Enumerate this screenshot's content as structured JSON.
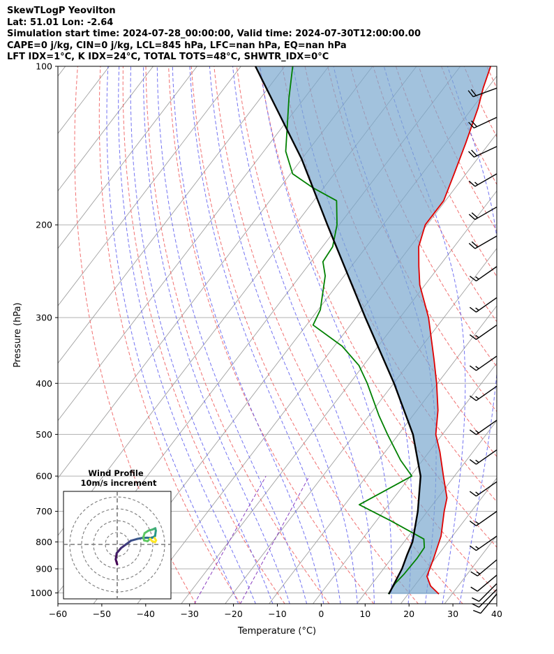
{
  "header": {
    "title": "SkewTLogP Yeovilton",
    "location": "Lat: 51.01   Lon: -2.64",
    "times": "Simulation start time: 2024-07-28_00:00:00, Valid time: 2024-07-30T12:00:00.00",
    "indices1": "CAPE=0 j/kg, CIN=0 j/kg, LCL=845 hPa, LFC=nan hPa, EQ=nan hPa",
    "indices2": "LFT IDX=1°C, K IDX=24°C, TOTAL TOTS=48°C, SHWTR_IDX=0°C"
  },
  "chart_data": {
    "type": "line",
    "subtype": "skew-t log-p",
    "xlabel": "Temperature (°C)",
    "ylabel": "Pressure (hPa)",
    "xlim": [
      -60,
      40
    ],
    "ylim": [
      1050,
      100
    ],
    "y_scale": "log",
    "x_ticks": [
      -60,
      -50,
      -40,
      -30,
      -20,
      -10,
      0,
      10,
      20,
      30,
      40
    ],
    "x_tick_labels": [
      "−60",
      "−50",
      "−40",
      "−30",
      "−20",
      "−10",
      "0",
      "10",
      "20",
      "30",
      "40"
    ],
    "y_ticks": [
      1000,
      900,
      800,
      700,
      600,
      500,
      400,
      300,
      200,
      100
    ],
    "grid": true,
    "colors": {
      "temperature": "#e00000",
      "dewpoint": "#008000",
      "parcel": "#000000",
      "cape_fill": "#7aa8cf",
      "dry_adiabat": "#f06060",
      "moist_adiabat": "#5a5af0",
      "mixing_ratio": "#8a3fc0",
      "isotherm": "#a0a0a0"
    },
    "series": [
      {
        "name": "",
        "role": "temperature",
        "points": [
          [
            1005,
            27
          ],
          [
            970,
            23.7
          ],
          [
            930,
            21.2
          ],
          [
            860,
            19.6
          ],
          [
            780,
            17.4
          ],
          [
            700,
            13.8
          ],
          [
            660,
            12.1
          ],
          [
            600,
            7.5
          ],
          [
            540,
            2.5
          ],
          [
            500,
            -1.5
          ],
          [
            450,
            -5.2
          ],
          [
            400,
            -10.2
          ],
          [
            360,
            -15.0
          ],
          [
            300,
            -23.5
          ],
          [
            260,
            -31.2
          ],
          [
            240,
            -34.6
          ],
          [
            220,
            -38.1
          ],
          [
            200,
            -40.4
          ],
          [
            180,
            -40.4
          ],
          [
            160,
            -42.7
          ],
          [
            140,
            -45.4
          ],
          [
            120,
            -48.7
          ],
          [
            110,
            -51.0
          ],
          [
            100,
            -53.1
          ]
        ]
      },
      {
        "name": "",
        "role": "dewpoint",
        "points": [
          [
            1005,
            15.5
          ],
          [
            960,
            15.2
          ],
          [
            920,
            15.6
          ],
          [
            860,
            15.8
          ],
          [
            820,
            15.6
          ],
          [
            790,
            14.0
          ],
          [
            730,
            3.4
          ],
          [
            680,
            -6.7
          ],
          [
            600,
            0.3
          ],
          [
            560,
            -5.0
          ],
          [
            500,
            -12.5
          ],
          [
            460,
            -17.8
          ],
          [
            400,
            -26.0
          ],
          [
            370,
            -31.0
          ],
          [
            340,
            -38.2
          ],
          [
            310,
            -48.5
          ],
          [
            290,
            -49.5
          ],
          [
            250,
            -54.3
          ],
          [
            235,
            -57.3
          ],
          [
            220,
            -57.7
          ],
          [
            200,
            -60.5
          ],
          [
            180,
            -64.8
          ],
          [
            170,
            -72.5
          ],
          [
            160,
            -79.5
          ],
          [
            145,
            -85.0
          ],
          [
            130,
            -89.0
          ],
          [
            115,
            -93.5
          ],
          [
            100,
            -98.2
          ]
        ]
      },
      {
        "name": "",
        "role": "parcel",
        "points": [
          [
            1005,
            15.6
          ],
          [
            900,
            14.2
          ],
          [
            845,
            12.9
          ],
          [
            800,
            11.9
          ],
          [
            700,
            7.8
          ],
          [
            600,
            2.3
          ],
          [
            500,
            -6.7
          ],
          [
            400,
            -19.9
          ],
          [
            300,
            -37.9
          ],
          [
            200,
            -62.7
          ],
          [
            150,
            -80.0
          ],
          [
            100,
            -106.7
          ]
        ]
      }
    ],
    "wind_barbs": [
      {
        "p": 110,
        "speed_kt": 20,
        "dir_deg": 250
      },
      {
        "p": 125,
        "speed_kt": 20,
        "dir_deg": 245
      },
      {
        "p": 142,
        "speed_kt": 20,
        "dir_deg": 245
      },
      {
        "p": 160,
        "speed_kt": 15,
        "dir_deg": 240
      },
      {
        "p": 185,
        "speed_kt": 20,
        "dir_deg": 240
      },
      {
        "p": 210,
        "speed_kt": 20,
        "dir_deg": 240
      },
      {
        "p": 240,
        "speed_kt": 15,
        "dir_deg": 235
      },
      {
        "p": 275,
        "speed_kt": 15,
        "dir_deg": 235
      },
      {
        "p": 310,
        "speed_kt": 15,
        "dir_deg": 235
      },
      {
        "p": 355,
        "speed_kt": 15,
        "dir_deg": 235
      },
      {
        "p": 405,
        "speed_kt": 15,
        "dir_deg": 235
      },
      {
        "p": 470,
        "speed_kt": 15,
        "dir_deg": 235
      },
      {
        "p": 535,
        "speed_kt": 15,
        "dir_deg": 235
      },
      {
        "p": 615,
        "speed_kt": 15,
        "dir_deg": 235
      },
      {
        "p": 700,
        "speed_kt": 15,
        "dir_deg": 235
      },
      {
        "p": 780,
        "speed_kt": 15,
        "dir_deg": 235
      },
      {
        "p": 865,
        "speed_kt": 15,
        "dir_deg": 230
      },
      {
        "p": 925,
        "speed_kt": 10,
        "dir_deg": 230
      },
      {
        "p": 960,
        "speed_kt": 10,
        "dir_deg": 225
      },
      {
        "p": 985,
        "speed_kt": 10,
        "dir_deg": 225
      },
      {
        "p": 1005,
        "speed_kt": 10,
        "dir_deg": 220
      }
    ],
    "hodograph": {
      "title": "Wind Profile",
      "subtitle": "10m/s increment",
      "ring_step_ms": 10,
      "rings": 4,
      "points_uv": [
        [
          0,
          -8
        ],
        [
          -0.6,
          -6
        ],
        [
          -0.2,
          -3.5
        ],
        [
          1.5,
          -1.5
        ],
        [
          3.5,
          0
        ],
        [
          5.5,
          1.5
        ],
        [
          8,
          2.2
        ],
        [
          10,
          2.6
        ],
        [
          12,
          2.7
        ],
        [
          13.5,
          2.6
        ],
        [
          14.5,
          2.9
        ],
        [
          15.2,
          3.4
        ],
        [
          15.5,
          5.5
        ],
        [
          15.3,
          6.5
        ],
        [
          14.2,
          6.0
        ],
        [
          12.5,
          5.5
        ],
        [
          11.0,
          4.5
        ],
        [
          10.5,
          3.0
        ],
        [
          10.8,
          1.6
        ],
        [
          12.2,
          1.3
        ],
        [
          13.2,
          2.3
        ],
        [
          14.0,
          1.3
        ],
        [
          15.2,
          0.9
        ],
        [
          15.6,
          1.6
        ],
        [
          15.0,
          2.6
        ]
      ]
    }
  }
}
